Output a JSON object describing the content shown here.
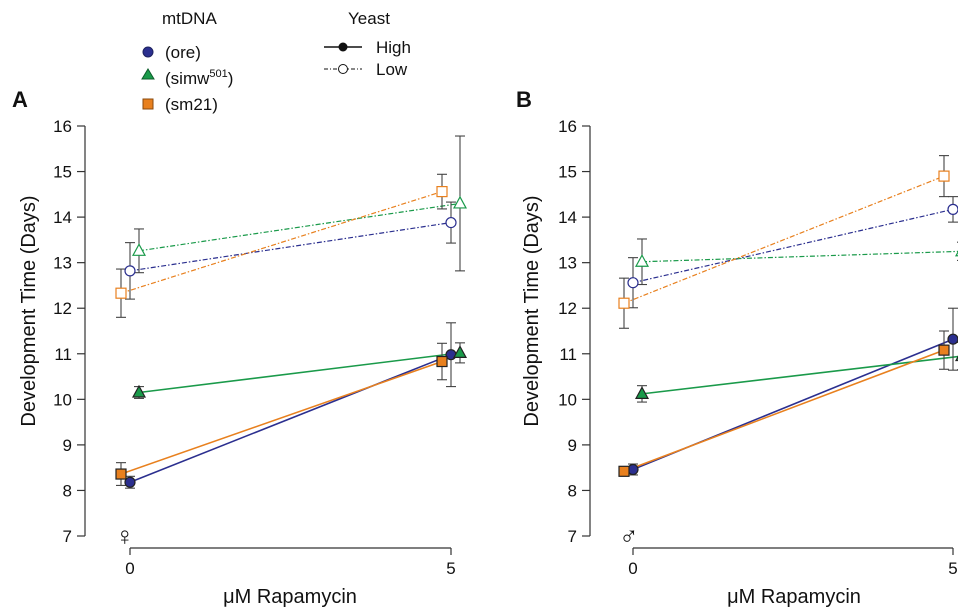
{
  "legend": {
    "mtdna_title": "mtDNA",
    "mtdna_items": [
      {
        "label": "(ore)",
        "color": "#2b2f8f",
        "marker": "circle"
      },
      {
        "label": "(simw",
        "sup": "501",
        "label_end": ")",
        "color": "#1a9a4a",
        "marker": "triangle"
      },
      {
        "label": "(sm21)",
        "color": "#e8801e",
        "marker": "square"
      }
    ],
    "yeast_title": "Yeast",
    "yeast_items": [
      {
        "label": "High",
        "style": "solid"
      },
      {
        "label": "Low",
        "style": "dashed"
      }
    ]
  },
  "colors": {
    "ore": "#2b2f8f",
    "simw": "#1a9a4a",
    "sm21": "#e8801e",
    "axis": "#333333"
  },
  "chart_data": [
    {
      "type": "line",
      "panel_label": "A",
      "sex_symbol": "♀",
      "ylabel": "Development Time (Days)",
      "xlabel": "μM Rapamycin",
      "x_ticks": [
        0,
        5
      ],
      "y_ticks": [
        7,
        8,
        9,
        10,
        11,
        12,
        13,
        14,
        15,
        16
      ],
      "ylim": [
        7,
        16
      ],
      "series": [
        {
          "mtdna": "ore",
          "yeast": "High",
          "points": [
            {
              "x": 0,
              "y": 8.18,
              "err": 0.13
            },
            {
              "x": 5,
              "y": 10.98,
              "err": 0.7
            }
          ]
        },
        {
          "mtdna": "simw",
          "yeast": "High",
          "points": [
            {
              "x": 0,
              "y": 10.15,
              "err": 0.13
            },
            {
              "x": 5,
              "y": 11.02,
              "err": 0.22
            }
          ]
        },
        {
          "mtdna": "sm21",
          "yeast": "High",
          "points": [
            {
              "x": 0,
              "y": 8.36,
              "err": 0.25
            },
            {
              "x": 5,
              "y": 10.83,
              "err": 0.4
            }
          ]
        },
        {
          "mtdna": "ore",
          "yeast": "Low",
          "points": [
            {
              "x": 0,
              "y": 12.82,
              "err": 0.62
            },
            {
              "x": 5,
              "y": 13.88,
              "err": 0.45
            }
          ]
        },
        {
          "mtdna": "simw",
          "yeast": "Low",
          "points": [
            {
              "x": 0,
              "y": 13.26,
              "err": 0.48
            },
            {
              "x": 5,
              "y": 14.3,
              "err": 1.48
            }
          ]
        },
        {
          "mtdna": "sm21",
          "yeast": "Low",
          "points": [
            {
              "x": 0,
              "y": 12.33,
              "err": 0.53
            },
            {
              "x": 5,
              "y": 14.56,
              "err": 0.38
            }
          ]
        }
      ]
    },
    {
      "type": "line",
      "panel_label": "B",
      "sex_symbol": "♂",
      "ylabel": "Development Time (Days)",
      "xlabel": "μM Rapamycin",
      "x_ticks": [
        0,
        5
      ],
      "y_ticks": [
        7,
        8,
        9,
        10,
        11,
        12,
        13,
        14,
        15,
        16
      ],
      "ylim": [
        7,
        16
      ],
      "series": [
        {
          "mtdna": "ore",
          "yeast": "High",
          "points": [
            {
              "x": 0,
              "y": 8.46,
              "err": 0.12
            },
            {
              "x": 5,
              "y": 11.32,
              "err": 0.68
            }
          ]
        },
        {
          "mtdna": "simw",
          "yeast": "High",
          "points": [
            {
              "x": 0,
              "y": 10.12,
              "err": 0.18
            },
            {
              "x": 5,
              "y": 10.95,
              "err": 0.3
            }
          ]
        },
        {
          "mtdna": "sm21",
          "yeast": "High",
          "points": [
            {
              "x": 0,
              "y": 8.42,
              "err": 0.06
            },
            {
              "x": 5,
              "y": 11.08,
              "err": 0.42
            }
          ]
        },
        {
          "mtdna": "ore",
          "yeast": "Low",
          "points": [
            {
              "x": 0,
              "y": 12.56,
              "err": 0.55
            },
            {
              "x": 5,
              "y": 14.17,
              "err": 0.28
            }
          ]
        },
        {
          "mtdna": "simw",
          "yeast": "Low",
          "points": [
            {
              "x": 0,
              "y": 13.02,
              "err": 0.5
            },
            {
              "x": 5,
              "y": 13.25,
              "err": 0.2
            }
          ]
        },
        {
          "mtdna": "sm21",
          "yeast": "Low",
          "points": [
            {
              "x": 0,
              "y": 12.11,
              "err": 0.55
            },
            {
              "x": 5,
              "y": 14.9,
              "err": 0.45
            }
          ]
        }
      ]
    }
  ]
}
